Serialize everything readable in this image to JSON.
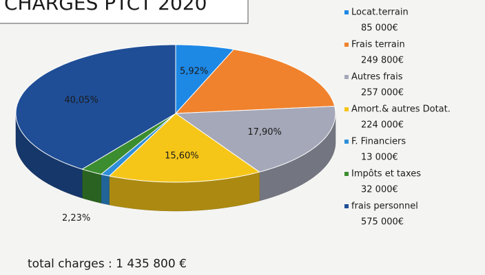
{
  "chart_data": {
    "type": "pie3d",
    "title": "CHARGES PTCT 2020",
    "categories": [
      "Locat.terrain",
      "Frais terrain",
      "Autres frais",
      "Amort.& autres Dotat.",
      "F. Financiers",
      "Impôts et taxes",
      "frais personnel"
    ],
    "values": [
      85000,
      249800,
      257000,
      224000,
      13000,
      32000,
      575000
    ],
    "value_labels": [
      "85 000€",
      "249 800€",
      "257 000€",
      "224 000€",
      "13 000€",
      "32 000€",
      "575 000€"
    ],
    "colors": [
      "#1e88e5",
      "#f0822d",
      "#a5a8b8",
      "#f5c518",
      "#2f8fd8",
      "#3c8d2f",
      "#1f4e96"
    ],
    "percents": [
      5.92,
      null,
      17.9,
      15.6,
      null,
      2.23,
      40.05
    ],
    "percent_labels": [
      "5,92%",
      null,
      "17,90%",
      "15,60%",
      null,
      "2,23%",
      "40,05%"
    ],
    "legend": "right",
    "total": "total charges : 1 435 800 €"
  }
}
